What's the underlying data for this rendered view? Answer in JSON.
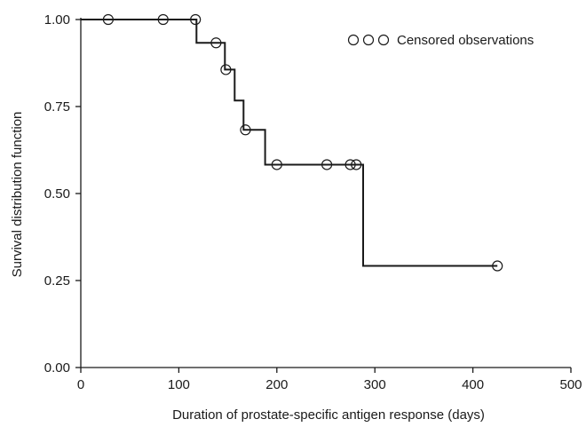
{
  "chart_data": {
    "type": "line",
    "subtype": "kaplan-meier step",
    "xlabel": "Duration of prostate-specific antigen response (days)",
    "ylabel": "Survival distribution function",
    "xlim": [
      0,
      500
    ],
    "ylim": [
      0,
      1
    ],
    "x_ticks": [
      0,
      100,
      200,
      300,
      400,
      500
    ],
    "y_ticks": [
      0.0,
      0.25,
      0.5,
      0.75,
      1.0
    ],
    "x_tick_labels": [
      "0",
      "100",
      "200",
      "300",
      "400",
      "500"
    ],
    "y_tick_labels": [
      "0.00",
      "0.25",
      "0.50",
      "0.75",
      "1.00"
    ],
    "grid": false,
    "legend": {
      "placement": "top-right",
      "label": "Censored observations",
      "symbol_count": 3
    },
    "step_curve": {
      "x": [
        0,
        118,
        118,
        147,
        147,
        157,
        157,
        166,
        166,
        188,
        188,
        288,
        288,
        425
      ],
      "y": [
        1.0,
        1.0,
        0.933,
        0.933,
        0.856,
        0.856,
        0.767,
        0.767,
        0.683,
        0.683,
        0.583,
        0.583,
        0.292,
        0.292
      ]
    },
    "censored": [
      {
        "x": 28,
        "y": 1.0
      },
      {
        "x": 84,
        "y": 1.0
      },
      {
        "x": 117,
        "y": 1.0
      },
      {
        "x": 138,
        "y": 0.933
      },
      {
        "x": 148,
        "y": 0.856
      },
      {
        "x": 168,
        "y": 0.683
      },
      {
        "x": 200,
        "y": 0.583
      },
      {
        "x": 251,
        "y": 0.583
      },
      {
        "x": 275,
        "y": 0.583
      },
      {
        "x": 281,
        "y": 0.583
      },
      {
        "x": 425,
        "y": 0.292
      }
    ],
    "colors": {
      "line": "#1a1a1a",
      "marker": "#1a1a1a"
    }
  }
}
